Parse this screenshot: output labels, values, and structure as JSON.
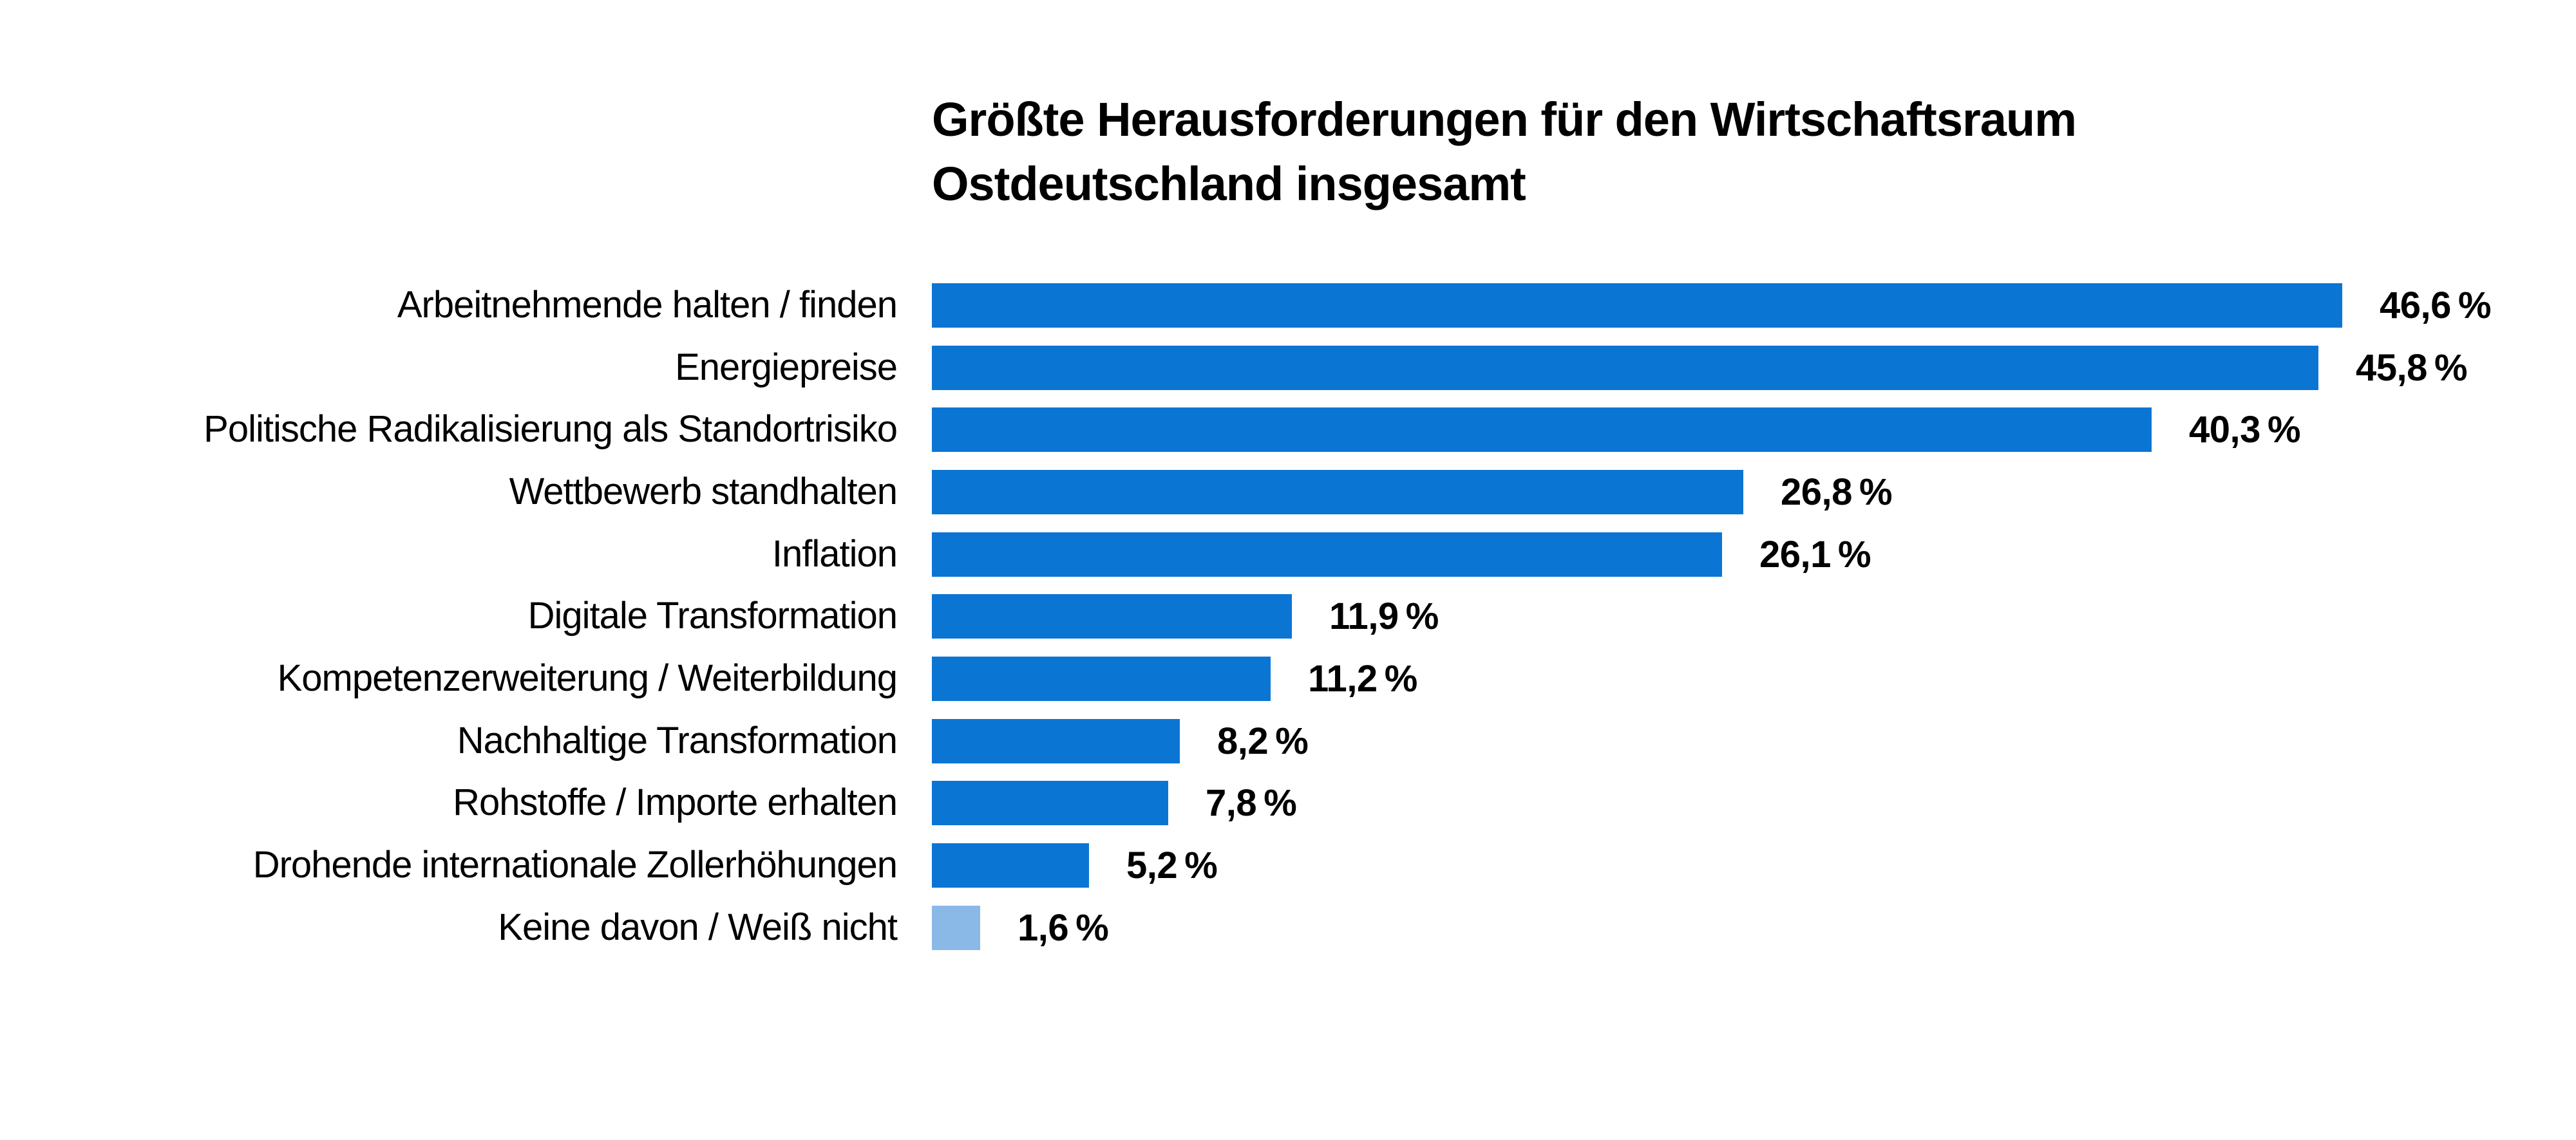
{
  "title": {
    "line1": "Größte Herausforderungen für den Wirtschaftsraum",
    "line2": "Ostdeutschland insgesamt"
  },
  "colors": {
    "bar": "#0b75d4",
    "bar_muted": "#8ab9e8",
    "text": "#000000",
    "background": "#ffffff"
  },
  "chart_data": {
    "type": "bar",
    "orientation": "horizontal",
    "title": "Größte Herausforderungen für den Wirtschaftsraum Ostdeutschland insgesamt",
    "xlim": [
      0,
      50
    ],
    "grid": false,
    "legend": false,
    "value_format": "decimal comma, thin space before %",
    "categories": [
      "Arbeitnehmende halten / finden",
      "Energiepreise",
      "Politische Radikalisierung als Standortrisiko",
      "Wettbewerb standhalten",
      "Inflation",
      "Digitale Transformation",
      "Kompetenzerweiterung / Weiterbildung",
      "Nachhaltige Transformation",
      "Rohstoffe / Importe erhalten",
      "Drohende internationale Zollerhöhungen",
      "Keine davon / Weiß nicht"
    ],
    "values": [
      46.6,
      45.8,
      40.3,
      26.8,
      26.1,
      11.9,
      11.2,
      8.2,
      7.8,
      5.2,
      1.6
    ],
    "items": [
      {
        "label": "Arbeitnehmende halten / finden",
        "value": 46.6,
        "value_label": "46,6 %",
        "muted": false
      },
      {
        "label": "Energiepreise",
        "value": 45.8,
        "value_label": "45,8 %",
        "muted": false
      },
      {
        "label": "Politische Radikalisierung als Standortrisiko",
        "value": 40.3,
        "value_label": "40,3 %",
        "muted": false
      },
      {
        "label": "Wettbewerb standhalten",
        "value": 26.8,
        "value_label": "26,8 %",
        "muted": false
      },
      {
        "label": "Inflation",
        "value": 26.1,
        "value_label": "26,1 %",
        "muted": false
      },
      {
        "label": "Digitale Transformation",
        "value": 11.9,
        "value_label": "11,9 %",
        "muted": false
      },
      {
        "label": "Kompetenzerweiterung / Weiterbildung",
        "value": 11.2,
        "value_label": "11,2 %",
        "muted": false
      },
      {
        "label": "Nachhaltige Transformation",
        "value": 8.2,
        "value_label": "8,2 %",
        "muted": false
      },
      {
        "label": "Rohstoffe / Importe erhalten",
        "value": 7.8,
        "value_label": "7,8 %",
        "muted": false
      },
      {
        "label": "Drohende internationale Zollerhöhungen",
        "value": 5.2,
        "value_label": "5,2 %",
        "muted": false
      },
      {
        "label": "Keine davon / Weiß nicht",
        "value": 1.6,
        "value_label": "1,6 %",
        "muted": true
      }
    ]
  }
}
